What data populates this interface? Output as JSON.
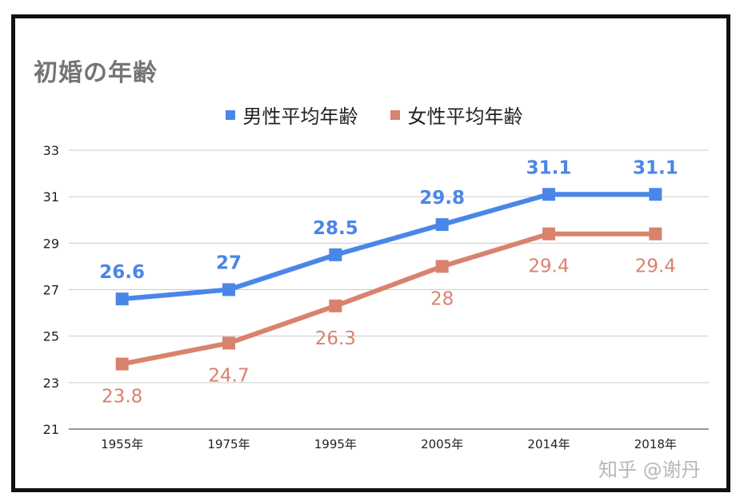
{
  "chart_data": {
    "type": "line",
    "title": "初婚の年齢",
    "categories": [
      "1955年",
      "1975年",
      "1995年",
      "2005年",
      "2014年",
      "2018年"
    ],
    "series": [
      {
        "name": "男性平均年齢",
        "color": "#4a86e8",
        "values": [
          26.6,
          27,
          28.5,
          29.8,
          31.1,
          31.1
        ],
        "labels": [
          "26.6",
          "27",
          "28.5",
          "29.8",
          "31.1",
          "31.1"
        ],
        "label_position": "above"
      },
      {
        "name": "女性平均年齢",
        "color": "#d9826d",
        "values": [
          23.8,
          24.7,
          26.3,
          28,
          29.4,
          29.4
        ],
        "labels": [
          "23.8",
          "24.7",
          "26.3",
          "28",
          "29.4",
          "29.4"
        ],
        "label_position": "below"
      }
    ],
    "ylim": [
      21,
      33
    ],
    "yticks": [
      21,
      23,
      25,
      27,
      29,
      31,
      33
    ],
    "xlabel": "",
    "ylabel": "",
    "grid": true,
    "legend": "top-center"
  },
  "watermark": "知乎 @谢丹"
}
